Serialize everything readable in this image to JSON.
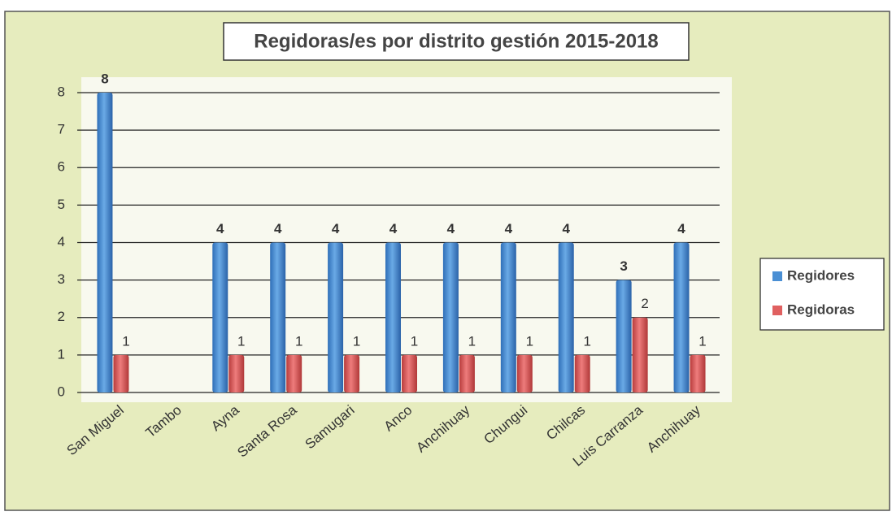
{
  "chart_data": {
    "type": "bar",
    "title": "Regidoras/es por distrito gestión 2015-2018",
    "categories": [
      "San Miguel",
      "Tambo",
      "Ayna",
      "Santa Rosa",
      "Samugari",
      "Anco",
      "Anchihuay",
      "Chungui",
      "Chilcas",
      "Luis Carranza",
      "Anchihuay"
    ],
    "series": [
      {
        "name": "Regidores",
        "color": "#4a8fd4",
        "values": [
          8,
          null,
          4,
          4,
          4,
          4,
          4,
          4,
          4,
          3,
          4
        ]
      },
      {
        "name": "Regidoras",
        "color": "#e06060",
        "values": [
          1,
          null,
          1,
          1,
          1,
          1,
          1,
          1,
          1,
          2,
          1
        ]
      }
    ],
    "ylim": [
      0,
      8
    ],
    "yticks": [
      0,
      1,
      2,
      3,
      4,
      5,
      6,
      7,
      8
    ],
    "grid": true,
    "legend": "right"
  }
}
